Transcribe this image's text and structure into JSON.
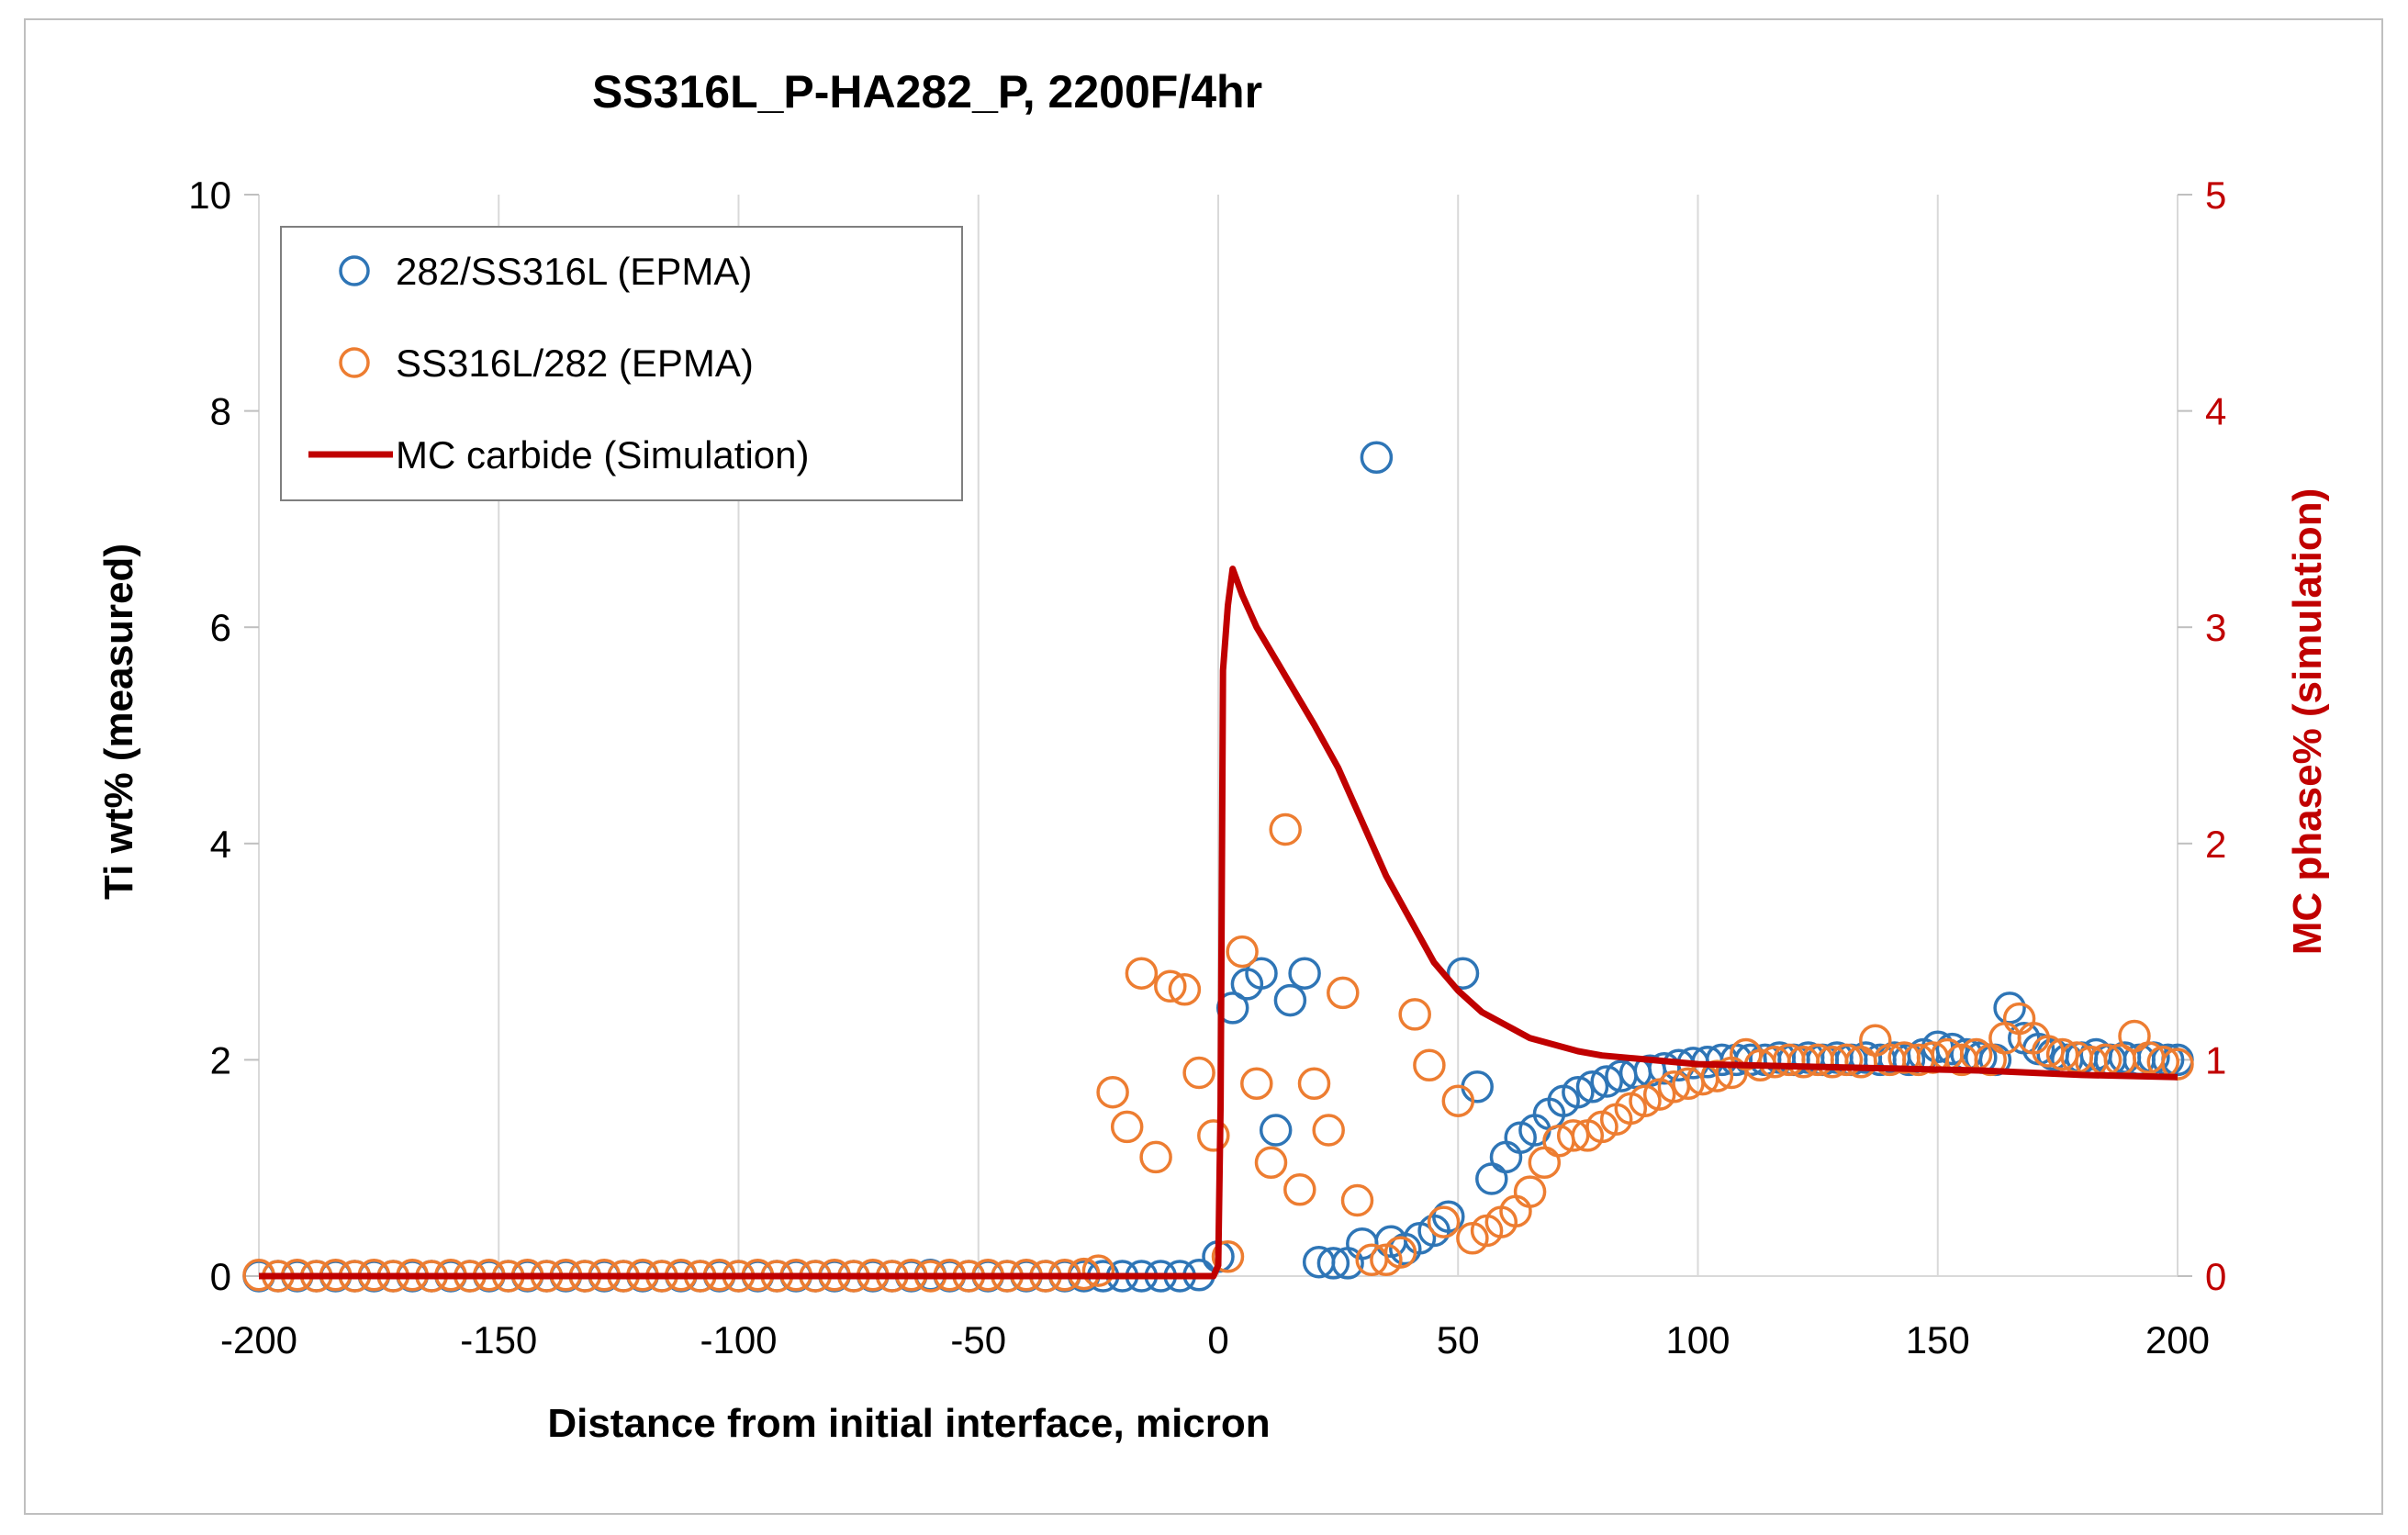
{
  "chart_data": {
    "type": "scatter",
    "title": "SS316L_P-HA282_P, 2200F/4hr",
    "xlabel": "Distance from initial interface, micron",
    "ylabel": "Ti wt% (measured)",
    "y2label": "MC phase% (simulation)",
    "xlim": [
      -200,
      200
    ],
    "ylim": [
      0,
      10
    ],
    "y2lim": [
      0,
      5
    ],
    "xticks": [
      "-200",
      "-150",
      "-100",
      "-50",
      "0",
      "50",
      "100",
      "150",
      "200"
    ],
    "yticks": [
      "0",
      "2",
      "4",
      "6",
      "8",
      "10"
    ],
    "y2ticks": [
      "0",
      "1",
      "2",
      "3",
      "4",
      "5"
    ],
    "grid": "vertical",
    "legend_position": "top-left",
    "colors": {
      "blue": "#2e75b6",
      "orange": "#ed7d31",
      "red": "#c00000",
      "grid": "#d9d9d9"
    },
    "series": [
      {
        "name": "282/SS316L (EPMA)",
        "kind": "scatter",
        "axis": "left",
        "color": "#2e75b6",
        "points": [
          [
            -200,
            0
          ],
          [
            -196,
            0
          ],
          [
            -192,
            0
          ],
          [
            -188,
            0
          ],
          [
            -184,
            0
          ],
          [
            -180,
            0
          ],
          [
            -176,
            0
          ],
          [
            -172,
            0
          ],
          [
            -168,
            0
          ],
          [
            -164,
            0
          ],
          [
            -160,
            0
          ],
          [
            -156,
            0
          ],
          [
            -152,
            0
          ],
          [
            -148,
            0
          ],
          [
            -144,
            0
          ],
          [
            -140,
            0
          ],
          [
            -136,
            0
          ],
          [
            -132,
            0
          ],
          [
            -128,
            0
          ],
          [
            -124,
            0
          ],
          [
            -120,
            0
          ],
          [
            -116,
            0
          ],
          [
            -112,
            0
          ],
          [
            -108,
            0
          ],
          [
            -104,
            0
          ],
          [
            -100,
            0
          ],
          [
            -96,
            0
          ],
          [
            -92,
            0
          ],
          [
            -88,
            0
          ],
          [
            -84,
            0
          ],
          [
            -80,
            0
          ],
          [
            -76,
            0
          ],
          [
            -72,
            0
          ],
          [
            -68,
            0
          ],
          [
            -64,
            0
          ],
          [
            -60,
            0.01
          ],
          [
            -56,
            0
          ],
          [
            -52,
            0
          ],
          [
            -48,
            0
          ],
          [
            -44,
            0
          ],
          [
            -40,
            0
          ],
          [
            -36,
            0
          ],
          [
            -32,
            0
          ],
          [
            -28,
            0
          ],
          [
            -24,
            0
          ],
          [
            -20,
            0
          ],
          [
            -16,
            0
          ],
          [
            -12,
            0
          ],
          [
            -8,
            0
          ],
          [
            -4,
            0.01
          ],
          [
            0,
            0.18
          ],
          [
            3,
            2.48
          ],
          [
            6,
            2.7
          ],
          [
            9,
            2.8
          ],
          [
            12,
            1.35
          ],
          [
            15,
            2.55
          ],
          [
            18,
            2.8
          ],
          [
            21,
            0.13
          ],
          [
            24,
            0.12
          ],
          [
            27,
            0.12
          ],
          [
            30,
            0.3
          ],
          [
            33,
            7.57
          ],
          [
            36,
            0.32
          ],
          [
            39,
            0.25
          ],
          [
            42,
            0.35
          ],
          [
            45,
            0.42
          ],
          [
            48,
            0.55
          ],
          [
            51,
            2.8
          ],
          [
            54,
            1.75
          ],
          [
            57,
            0.9
          ],
          [
            60,
            1.1
          ],
          [
            63,
            1.28
          ],
          [
            66,
            1.35
          ],
          [
            69,
            1.5
          ],
          [
            72,
            1.62
          ],
          [
            75,
            1.7
          ],
          [
            78,
            1.75
          ],
          [
            81,
            1.8
          ],
          [
            84,
            1.85
          ],
          [
            87,
            1.88
          ],
          [
            90,
            1.9
          ],
          [
            93,
            1.92
          ],
          [
            96,
            1.95
          ],
          [
            99,
            1.97
          ],
          [
            102,
            1.98
          ],
          [
            105,
            2.0
          ],
          [
            108,
            2.0
          ],
          [
            111,
            2.0
          ],
          [
            114,
            2.0
          ],
          [
            117,
            2.02
          ],
          [
            120,
            2.0
          ],
          [
            123,
            2.02
          ],
          [
            126,
            2.0
          ],
          [
            129,
            2.02
          ],
          [
            132,
            2.0
          ],
          [
            135,
            2.02
          ],
          [
            138,
            2.0
          ],
          [
            141,
            2.02
          ],
          [
            144,
            2.0
          ],
          [
            147,
            2.05
          ],
          [
            150,
            2.12
          ],
          [
            153,
            2.1
          ],
          [
            156,
            2.05
          ],
          [
            159,
            2.02
          ],
          [
            162,
            2.0
          ],
          [
            165,
            2.48
          ],
          [
            168,
            2.2
          ],
          [
            171,
            2.1
          ],
          [
            174,
            2.05
          ],
          [
            177,
            2.0
          ],
          [
            180,
            2.02
          ],
          [
            183,
            2.05
          ],
          [
            186,
            2.0
          ],
          [
            189,
            2.02
          ],
          [
            192,
            2.0
          ],
          [
            195,
            2.02
          ],
          [
            198,
            2.0
          ],
          [
            200,
            2.0
          ]
        ]
      },
      {
        "name": "SS316L/282 (EPMA)",
        "kind": "scatter",
        "axis": "left",
        "color": "#ed7d31",
        "points": [
          [
            -200,
            0.01
          ],
          [
            -196,
            0
          ],
          [
            -192,
            0.01
          ],
          [
            -188,
            0
          ],
          [
            -184,
            0.01
          ],
          [
            -180,
            0
          ],
          [
            -176,
            0.01
          ],
          [
            -172,
            0
          ],
          [
            -168,
            0.01
          ],
          [
            -164,
            0
          ],
          [
            -160,
            0.01
          ],
          [
            -156,
            0
          ],
          [
            -152,
            0.01
          ],
          [
            -148,
            0
          ],
          [
            -144,
            0.01
          ],
          [
            -140,
            0
          ],
          [
            -136,
            0.01
          ],
          [
            -132,
            0
          ],
          [
            -128,
            0.01
          ],
          [
            -124,
            0
          ],
          [
            -120,
            0.01
          ],
          [
            -116,
            0
          ],
          [
            -112,
            0.01
          ],
          [
            -108,
            0
          ],
          [
            -104,
            0.01
          ],
          [
            -100,
            0
          ],
          [
            -96,
            0.01
          ],
          [
            -92,
            0
          ],
          [
            -88,
            0.01
          ],
          [
            -84,
            0
          ],
          [
            -80,
            0.01
          ],
          [
            -76,
            0
          ],
          [
            -72,
            0.01
          ],
          [
            -68,
            0
          ],
          [
            -64,
            0.01
          ],
          [
            -60,
            0
          ],
          [
            -56,
            0.01
          ],
          [
            -52,
            0
          ],
          [
            -48,
            0.01
          ],
          [
            -44,
            0
          ],
          [
            -40,
            0.01
          ],
          [
            -36,
            0
          ],
          [
            -32,
            0.01
          ],
          [
            -28,
            0.02
          ],
          [
            -25,
            0.05
          ],
          [
            -22,
            1.7
          ],
          [
            -19,
            1.38
          ],
          [
            -16,
            2.8
          ],
          [
            -13,
            1.1
          ],
          [
            -10,
            2.68
          ],
          [
            -7,
            2.65
          ],
          [
            -4,
            1.88
          ],
          [
            -1,
            1.3
          ],
          [
            2,
            0.18
          ],
          [
            5,
            3.0
          ],
          [
            8,
            1.78
          ],
          [
            11,
            1.05
          ],
          [
            14,
            4.13
          ],
          [
            17,
            0.8
          ],
          [
            20,
            1.78
          ],
          [
            23,
            1.35
          ],
          [
            26,
            2.62
          ],
          [
            29,
            0.7
          ],
          [
            32,
            0.15
          ],
          [
            35,
            0.15
          ],
          [
            38,
            0.22
          ],
          [
            41,
            2.42
          ],
          [
            44,
            1.95
          ],
          [
            47,
            0.5
          ],
          [
            50,
            1.62
          ],
          [
            53,
            0.35
          ],
          [
            56,
            0.42
          ],
          [
            59,
            0.5
          ],
          [
            62,
            0.6
          ],
          [
            65,
            0.78
          ],
          [
            68,
            1.05
          ],
          [
            71,
            1.25
          ],
          [
            74,
            1.3
          ],
          [
            77,
            1.3
          ],
          [
            80,
            1.38
          ],
          [
            83,
            1.45
          ],
          [
            86,
            1.55
          ],
          [
            89,
            1.62
          ],
          [
            92,
            1.68
          ],
          [
            95,
            1.75
          ],
          [
            98,
            1.78
          ],
          [
            101,
            1.82
          ],
          [
            104,
            1.85
          ],
          [
            107,
            1.88
          ],
          [
            110,
            2.05
          ],
          [
            113,
            1.95
          ],
          [
            116,
            1.98
          ],
          [
            119,
            2.0
          ],
          [
            122,
            1.98
          ],
          [
            125,
            2.0
          ],
          [
            128,
            1.98
          ],
          [
            131,
            2.0
          ],
          [
            134,
            1.98
          ],
          [
            137,
            2.18
          ],
          [
            140,
            2.0
          ],
          [
            143,
            2.02
          ],
          [
            146,
            2.0
          ],
          [
            149,
            2.02
          ],
          [
            152,
            2.05
          ],
          [
            155,
            2.0
          ],
          [
            158,
            2.05
          ],
          [
            161,
            2.0
          ],
          [
            164,
            2.2
          ],
          [
            167,
            2.38
          ],
          [
            170,
            2.2
          ],
          [
            173,
            2.08
          ],
          [
            176,
            2.05
          ],
          [
            179,
            2.02
          ],
          [
            182,
            1.98
          ],
          [
            185,
            2.0
          ],
          [
            188,
            2.0
          ],
          [
            191,
            2.22
          ],
          [
            194,
            2.02
          ],
          [
            197,
            1.98
          ],
          [
            200,
            1.96
          ]
        ]
      },
      {
        "name": "MC carbide (Simulation)",
        "kind": "line",
        "axis": "right",
        "color": "#c00000",
        "points": [
          [
            -200,
            0
          ],
          [
            -100,
            0
          ],
          [
            -10,
            0
          ],
          [
            -1,
            0
          ],
          [
            0,
            0.05
          ],
          [
            0.5,
            0.8
          ],
          [
            1,
            2.8
          ],
          [
            2,
            3.1
          ],
          [
            3,
            3.27
          ],
          [
            5,
            3.15
          ],
          [
            8,
            3.0
          ],
          [
            12,
            2.85
          ],
          [
            16,
            2.7
          ],
          [
            20,
            2.55
          ],
          [
            25,
            2.35
          ],
          [
            30,
            2.1
          ],
          [
            35,
            1.85
          ],
          [
            40,
            1.65
          ],
          [
            45,
            1.45
          ],
          [
            50,
            1.32
          ],
          [
            55,
            1.22
          ],
          [
            60,
            1.16
          ],
          [
            65,
            1.1
          ],
          [
            70,
            1.07
          ],
          [
            75,
            1.04
          ],
          [
            80,
            1.02
          ],
          [
            90,
            1.0
          ],
          [
            100,
            0.98
          ],
          [
            120,
            0.97
          ],
          [
            140,
            0.96
          ],
          [
            160,
            0.95
          ],
          [
            180,
            0.93
          ],
          [
            200,
            0.92
          ]
        ]
      }
    ]
  }
}
